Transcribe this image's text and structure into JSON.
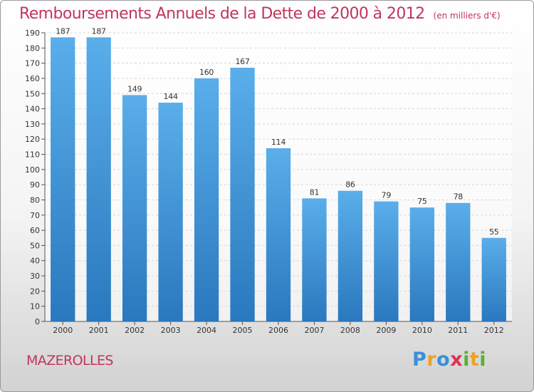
{
  "chart_data": {
    "type": "bar",
    "title": "Remboursements Annuels de la Dette de 2000 à 2012",
    "subtitle": "(en milliers d'€)",
    "categories": [
      "2000",
      "2001",
      "2002",
      "2003",
      "2004",
      "2005",
      "2006",
      "2007",
      "2008",
      "2009",
      "2010",
      "2011",
      "2012"
    ],
    "values": [
      187,
      187,
      149,
      144,
      160,
      167,
      114,
      81,
      86,
      79,
      75,
      78,
      55
    ],
    "ylim": [
      0,
      190
    ],
    "yticks": [
      0,
      10,
      20,
      30,
      40,
      50,
      60,
      70,
      80,
      90,
      100,
      110,
      120,
      130,
      140,
      150,
      160,
      170,
      180,
      190
    ],
    "grid": true,
    "bar_color_top": "#5aaeea",
    "bar_color_bottom": "#2a78be"
  },
  "commune": "MAZEROLLES",
  "logo": {
    "letters": [
      "P",
      "r",
      "o",
      "x",
      "i",
      "t",
      "i"
    ],
    "colors": [
      "#3a8fd8",
      "#f0a020",
      "#3a8fd8",
      "#e03050",
      "#5ab030",
      "#f0a020",
      "#5ab030"
    ]
  }
}
